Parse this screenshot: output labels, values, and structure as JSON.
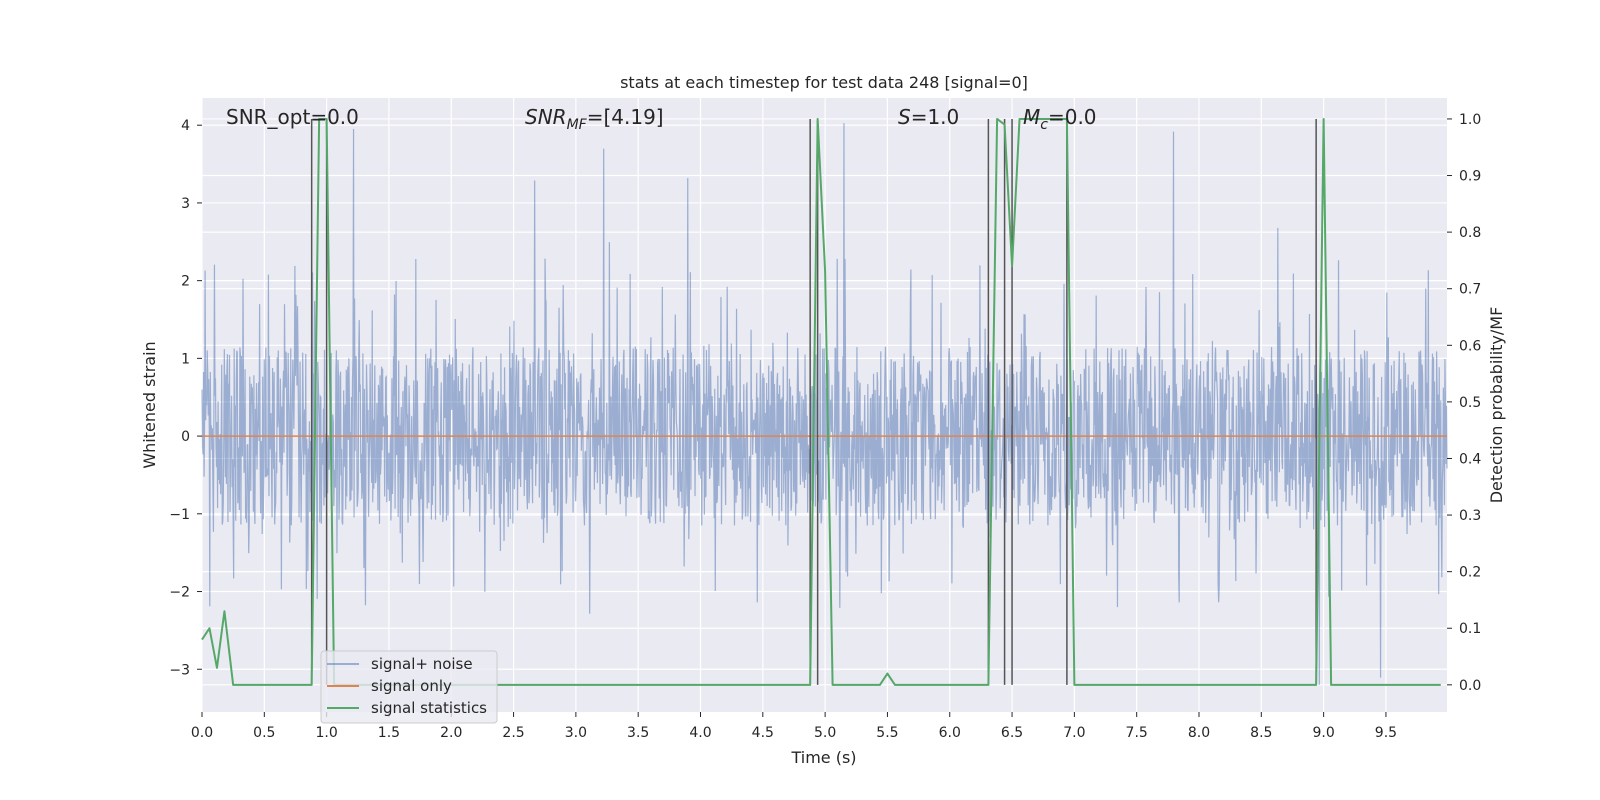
{
  "chart_data": {
    "type": "line",
    "title": "stats at each timestep for test data 248 [signal=0]",
    "xlabel": "Time (s)",
    "ylabel": "Whitened strain",
    "y2label": "Detection probability/MF",
    "xlim": [
      0.0,
      9.99
    ],
    "ylim": [
      -3.55,
      4.35
    ],
    "y2lim": [
      -0.048,
      1.037
    ],
    "xticks": [
      0.0,
      0.5,
      1.0,
      1.5,
      2.0,
      2.5,
      3.0,
      3.5,
      4.0,
      4.5,
      5.0,
      5.5,
      6.0,
      6.5,
      7.0,
      7.5,
      8.0,
      8.5,
      9.0,
      9.5
    ],
    "xtick_labels": [
      "0.0",
      "0.5",
      "1.0",
      "1.5",
      "2.0",
      "2.5",
      "3.0",
      "3.5",
      "4.0",
      "4.5",
      "5.0",
      "5.5",
      "6.0",
      "6.5",
      "7.0",
      "7.5",
      "8.0",
      "8.5",
      "9.0",
      "9.5"
    ],
    "yticks": [
      -3,
      -2,
      -1,
      0,
      1,
      2,
      3,
      4
    ],
    "ytick_labels": [
      "−3",
      "−2",
      "−1",
      "0",
      "1",
      "2",
      "3",
      "4"
    ],
    "y2ticks": [
      0.0,
      0.1,
      0.2,
      0.3,
      0.4,
      0.5,
      0.6,
      0.7,
      0.8,
      0.9,
      1.0
    ],
    "y2tick_labels": [
      "0.0",
      "0.1",
      "0.2",
      "0.3",
      "0.4",
      "0.5",
      "0.6",
      "0.7",
      "0.8",
      "0.9",
      "1.0"
    ],
    "grid": true,
    "legend_position": "bottom-left",
    "annotations": {
      "snr_opt": "SNR_opt=0.0",
      "snr_mf_sym": "SNR",
      "snr_mf_sub": "MF",
      "snr_mf_val": "=[4.19]",
      "s_sym": "S",
      "s_val": "=1.0",
      "mc_sym": "M",
      "mc_sub": "c",
      "mc_val": "=0.0"
    },
    "noise_envelope": {
      "dense_amplitude": 1.15,
      "typical_max": 2.3,
      "peak_max": 4.1,
      "peak_min": -3.2
    },
    "series": [
      {
        "name": "signal+ noise",
        "color": "#4c72b0",
        "opacity": 0.5
      },
      {
        "name": "signal only",
        "color": "#dd8452",
        "x": [
          0.0,
          9.99
        ],
        "y": [
          0.0,
          0.0
        ]
      },
      {
        "name": "signal statistics",
        "color": "#55a868",
        "axis": "right",
        "x": [
          0.0,
          0.06,
          0.12,
          0.18,
          0.25,
          0.88,
          0.94,
          1.0,
          1.06,
          4.88,
          4.94,
          5.0,
          5.06,
          5.44,
          5.5,
          5.56,
          6.31,
          6.38,
          6.44,
          6.5,
          6.56,
          6.62,
          6.69,
          6.75,
          6.81,
          6.88,
          6.94,
          7.0,
          8.94,
          9.0,
          9.06,
          9.94
        ],
        "y": [
          0.08,
          0.1,
          0.03,
          0.13,
          0.0,
          0.0,
          1.0,
          1.0,
          0.0,
          0.0,
          1.0,
          0.73,
          0.0,
          0.0,
          0.02,
          0.0,
          0.0,
          1.0,
          0.99,
          0.74,
          1.0,
          1.0,
          1.0,
          1.0,
          1.0,
          1.0,
          1.0,
          0.0,
          0.0,
          1.0,
          0.0,
          0.0
        ]
      }
    ],
    "vlines": [
      0.88,
      1.0,
      4.88,
      4.94,
      6.31,
      6.44,
      6.5,
      6.94,
      8.94
    ]
  }
}
